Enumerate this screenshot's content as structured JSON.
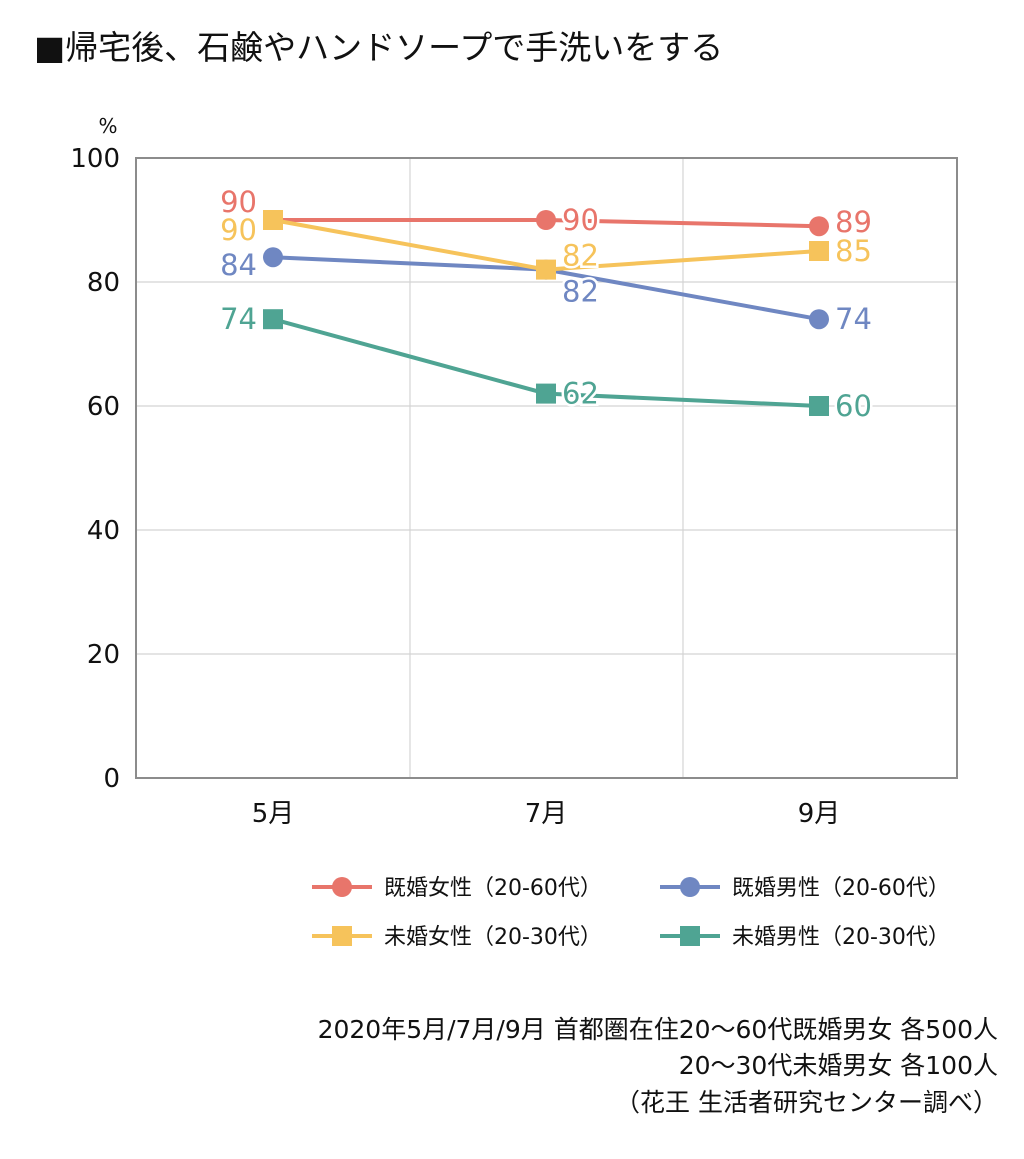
{
  "title": "■帰宅後、石鹸やハンドソープで手洗いをする",
  "chart_data": {
    "type": "line",
    "ylabel": "%",
    "categories": [
      "5月",
      "7月",
      "9月"
    ],
    "ylim": [
      0,
      100
    ],
    "yticks": [
      0,
      20,
      40,
      60,
      80,
      100
    ],
    "grid": true,
    "legend_position": "bottom-right",
    "series": [
      {
        "name": "既婚女性（20-60代）",
        "values": [
          90,
          90,
          89
        ],
        "color": "#E8756B",
        "marker": "circle"
      },
      {
        "name": "既婚男性（20-60代）",
        "values": [
          84,
          82,
          74
        ],
        "color": "#6F87C2",
        "marker": "circle"
      },
      {
        "name": "未婚女性（20-30代）",
        "values": [
          90,
          82,
          85
        ],
        "color": "#F6C35B",
        "marker": "square"
      },
      {
        "name": "未婚男性（20-30代）",
        "values": [
          74,
          62,
          60
        ],
        "color": "#4FA493",
        "marker": "square"
      }
    ]
  },
  "footer": {
    "line1": "2020年5月/7月/9月 首都圏在住20〜60代既婚男女 各500人",
    "line2": "20〜30代未婚男女 各100人",
    "line3": "（花王 生活者研究センター調べ）"
  }
}
